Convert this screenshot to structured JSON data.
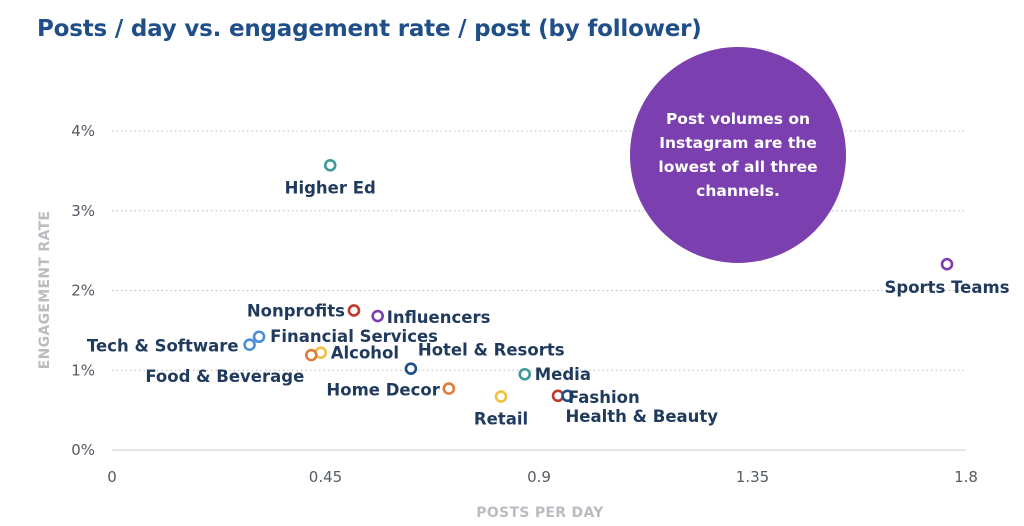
{
  "chart_data": {
    "type": "scatter",
    "title": "Posts / day vs. engagement rate / post (by follower)",
    "xlabel": "POSTS PER DAY",
    "ylabel": "ENGAGEMENT RATE",
    "xlim": [
      0,
      1.8
    ],
    "ylim": [
      0,
      4
    ],
    "x_ticks": [
      "0",
      "0.45",
      "0.9",
      "1.35",
      "1.8"
    ],
    "y_ticks": [
      "0%",
      "1%",
      "2%",
      "3%",
      "4%"
    ],
    "grid": "horizontal-dotted",
    "points": [
      {
        "label": "Higher Ed",
        "x": 0.46,
        "y": 3.57,
        "color": "#3d9a97"
      },
      {
        "label": "Sports Teams",
        "x": 1.76,
        "y": 2.33,
        "color": "#7b3fb0"
      },
      {
        "label": "Nonprofits",
        "x": 0.51,
        "y": 1.75,
        "color": "#c0392b"
      },
      {
        "label": "Influencers",
        "x": 0.56,
        "y": 1.68,
        "color": "#7b3fb0"
      },
      {
        "label": "Financial Services",
        "x": 0.31,
        "y": 1.42,
        "color": "#4a90d9"
      },
      {
        "label": "Tech & Software",
        "x": 0.29,
        "y": 1.32,
        "color": "#4a90d9"
      },
      {
        "label": "Alcohol",
        "x": 0.44,
        "y": 1.22,
        "color": "#f0c040"
      },
      {
        "label": "Food & Beverage",
        "x": 0.42,
        "y": 1.19,
        "color": "#e07b39"
      },
      {
        "label": "Hotel & Resorts",
        "x": 0.63,
        "y": 1.02,
        "color": "#1f4e89"
      },
      {
        "label": "Media",
        "x": 0.87,
        "y": 0.95,
        "color": "#3d9a97"
      },
      {
        "label": "Home Decor",
        "x": 0.71,
        "y": 0.77,
        "color": "#e07b39"
      },
      {
        "label": "Retail",
        "x": 0.82,
        "y": 0.67,
        "color": "#f0c040"
      },
      {
        "label": "Fashion",
        "x": 0.94,
        "y": 0.68,
        "color": "#c0392b"
      },
      {
        "label": "Health & Beauty",
        "x": 0.96,
        "y": 0.68,
        "color": "#1f4e89"
      }
    ],
    "callout": {
      "lines": [
        "Post volumes on",
        "Instagram are the",
        "lowest of all three",
        "channels."
      ],
      "color": "#7b3fb0"
    }
  }
}
